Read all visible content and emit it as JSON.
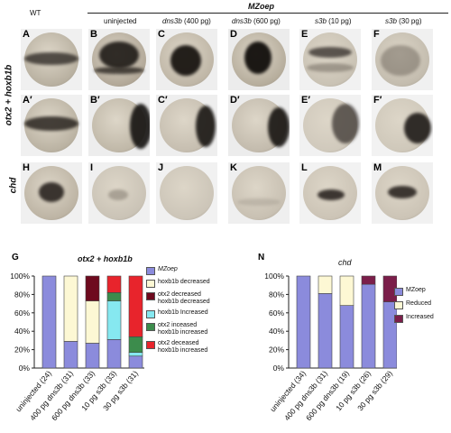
{
  "header": {
    "wt": "WT",
    "group": "MZoep",
    "cols": [
      "uninjected",
      "dns3b",
      "(400 pg)",
      "dns3b",
      "(600 pg)",
      "s3b",
      "(10 pg)",
      "s3b",
      "(30 pg)"
    ]
  },
  "rows": {
    "row1": "otx2 + hoxb1b",
    "row3": "chd"
  },
  "panels": {
    "row1": [
      "A",
      "B",
      "C",
      "D",
      "E",
      "F"
    ],
    "row2": [
      "A′",
      "B′",
      "C′",
      "D′",
      "E′",
      "F′"
    ],
    "row3": [
      "H",
      "I",
      "J",
      "K",
      "L",
      "M"
    ]
  },
  "chart_G": {
    "label": "G",
    "title": "otx2 + hoxb1b",
    "legend": [
      {
        "label": "MZoep",
        "color": "#8b8bdc",
        "italic": true
      },
      {
        "label": "hoxb1b decreased",
        "color": "#fdf8d4"
      },
      {
        "label": "otx2 decreased",
        "label2": "hoxb1b decreased",
        "color": "#6e0a1e"
      },
      {
        "label": "hoxb1b Increased",
        "color": "#86e8f0"
      },
      {
        "label": "otx2 inceased",
        "label2": "hoxb1b increased",
        "color": "#3c8c4c"
      },
      {
        "label": "otx2 deceased",
        "label2": "hoxb1b increased",
        "color": "#e8242c"
      }
    ]
  },
  "chart_N": {
    "label": "N",
    "title": "chd",
    "legend": [
      {
        "label": "MZoep",
        "color": "#8b8bdc"
      },
      {
        "label": "Reduced",
        "color": "#fdf8d4"
      },
      {
        "label": "Increased",
        "color": "#7b1e4a"
      }
    ]
  },
  "chart_data": [
    {
      "type": "bar",
      "stacked": true,
      "title": "otx2 + hoxb1b",
      "categories": [
        "uninjected (24)",
        "400 pg dns3b (31)",
        "600 pg dns3b (33)",
        "10 pg s3b (33)",
        "30 pg s3b (31)"
      ],
      "yticks": [
        "0%",
        "20%",
        "40%",
        "60%",
        "80%",
        "100%"
      ],
      "ylim": [
        0,
        100
      ],
      "series": [
        {
          "name": "MZoep",
          "color": "#8b8bdc",
          "values": [
            100,
            29,
            27,
            31,
            13
          ]
        },
        {
          "name": "hoxb1b decreased",
          "color": "#fdf8d4",
          "values": [
            0,
            71,
            46,
            0,
            0
          ]
        },
        {
          "name": "otx2 decreased hoxb1b decreased",
          "color": "#6e0a1e",
          "values": [
            0,
            0,
            27,
            0,
            0
          ]
        },
        {
          "name": "hoxb1b Increased",
          "color": "#86e8f0",
          "values": [
            0,
            0,
            0,
            42,
            4
          ]
        },
        {
          "name": "otx2 inceased hoxb1b increased",
          "color": "#3c8c4c",
          "values": [
            0,
            0,
            0,
            9,
            17
          ]
        },
        {
          "name": "otx2 deceased hoxb1b increased",
          "color": "#e8242c",
          "values": [
            0,
            0,
            0,
            18,
            66
          ]
        }
      ]
    },
    {
      "type": "bar",
      "stacked": true,
      "title": "chd",
      "categories": [
        "uninjected (34)",
        "400 pg dns3b (31)",
        "600 pg dns3b (19)",
        "10 pg s3b (26)",
        "30 pg s3b (29)"
      ],
      "yticks": [
        "0%",
        "20%",
        "40%",
        "60%",
        "80%",
        "100%"
      ],
      "ylim": [
        0,
        100
      ],
      "series": [
        {
          "name": "MZoep",
          "color": "#8b8bdc",
          "values": [
            100,
            81,
            68,
            91,
            72
          ]
        },
        {
          "name": "Reduced",
          "color": "#fdf8d4",
          "values": [
            0,
            19,
            32,
            0,
            0
          ]
        },
        {
          "name": "Increased",
          "color": "#7b1e4a",
          "values": [
            0,
            0,
            0,
            9,
            28
          ]
        }
      ]
    }
  ]
}
